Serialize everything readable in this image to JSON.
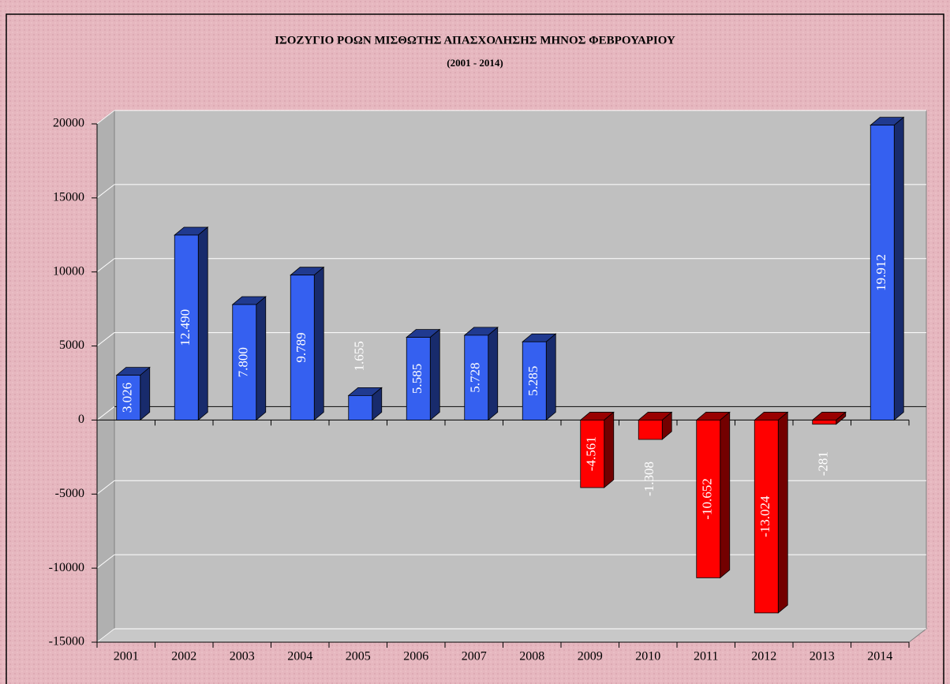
{
  "chart_data": {
    "type": "bar3d",
    "title": "ΙΣΟΖΥΓΙΟ ΡΟΩΝ ΜΙΣΘΩΤΗΣ ΑΠΑΣΧΟΛΗΣΗΣ ΜΗΝΟΣ ΦΕΒΡΟΥΑΡΙΟΥ",
    "subtitle": "(2001 - 2014)",
    "categories": [
      "2001",
      "2002",
      "2003",
      "2004",
      "2005",
      "2006",
      "2007",
      "2008",
      "2009",
      "2010",
      "2011",
      "2012",
      "2013",
      "2014"
    ],
    "values": [
      3026,
      12490,
      7800,
      9789,
      1655,
      5585,
      5728,
      5285,
      -4561,
      -1308,
      -10652,
      -13024,
      -281,
      19912
    ],
    "value_labels": [
      "3.026",
      "12.490",
      "7.800",
      "9.789",
      "1.655",
      "5.585",
      "5.728",
      "5.285",
      "-4.561",
      "-1.308",
      "-10.652",
      "-13.024",
      "-281",
      "19.912"
    ],
    "positive_color": "#3560f0",
    "negative_color": "#ff0000",
    "ylim": [
      -15000,
      20000
    ],
    "yticks": [
      -15000,
      -10000,
      -5000,
      0,
      5000,
      10000,
      15000,
      20000
    ],
    "grid": true
  }
}
